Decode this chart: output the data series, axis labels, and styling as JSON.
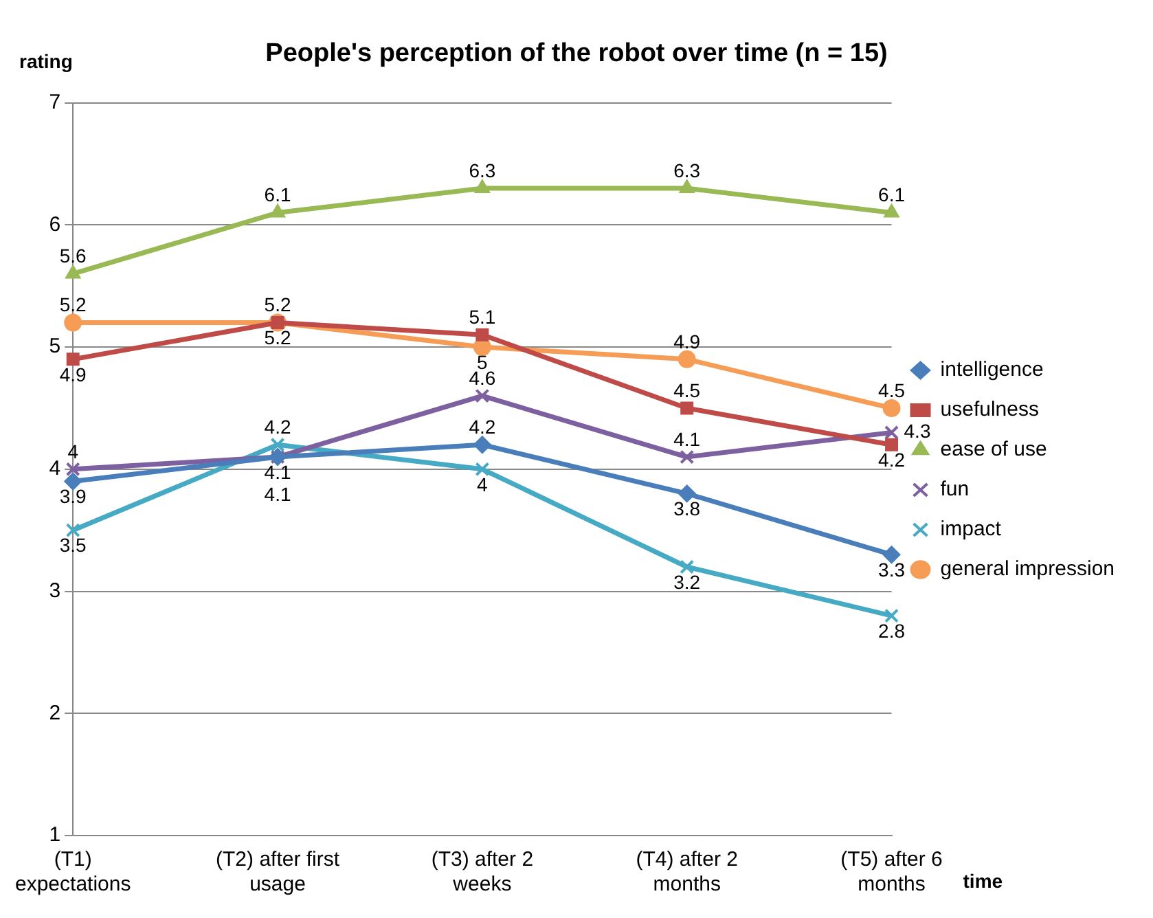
{
  "chart_data": {
    "type": "line",
    "title": "People's perception of the robot over time (n = 15)",
    "xlabel": "time",
    "ylabel": "rating",
    "categories": [
      "(T1) expectations",
      "(T2) after first usage",
      "(T3) after 2 weeks",
      "(T4) after 2 months",
      "(T5) after 6 months"
    ],
    "series": [
      {
        "name": "intelligence",
        "color": "#4a7ebb",
        "marker": "diamond",
        "values": [
          3.9,
          4.1,
          4.2,
          3.8,
          3.3
        ]
      },
      {
        "name": "usefulness",
        "color": "#be4b48",
        "marker": "square",
        "values": [
          4.9,
          5.2,
          5.1,
          4.5,
          4.2
        ]
      },
      {
        "name": "ease of use",
        "color": "#98b954",
        "marker": "triangle",
        "values": [
          5.6,
          6.1,
          6.3,
          6.3,
          6.1
        ]
      },
      {
        "name": "fun",
        "color": "#7d60a0",
        "marker": "cross",
        "values": [
          4,
          4.1,
          4.6,
          4.1,
          4.3
        ]
      },
      {
        "name": "impact",
        "color": "#46aac5",
        "marker": "cross",
        "values": [
          3.5,
          4.2,
          4,
          3.2,
          2.8
        ]
      },
      {
        "name": "general impression",
        "color": "#f59d56",
        "marker": "circle",
        "values": [
          5.2,
          5.2,
          5,
          4.9,
          4.5
        ]
      }
    ],
    "ylim": [
      1,
      7
    ],
    "yticks": [
      1,
      2,
      3,
      4,
      5,
      6,
      7
    ],
    "grid": "y",
    "legend": "right",
    "data_labels": true
  }
}
